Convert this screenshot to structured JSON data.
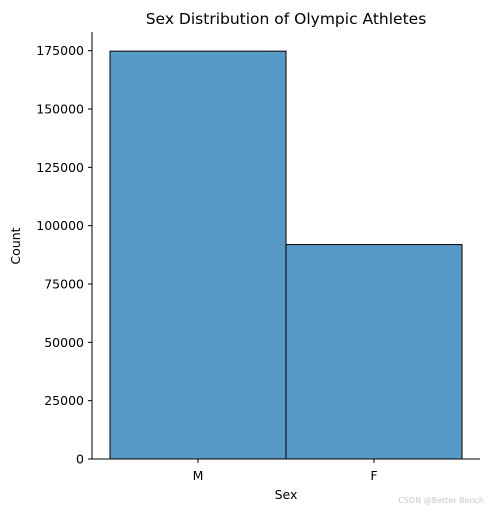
{
  "chart_data": {
    "type": "bar",
    "title": "Sex Distribution of Olympic Athletes",
    "xlabel": "Sex",
    "ylabel": "Count",
    "categories": [
      "M",
      "F"
    ],
    "values": [
      174800,
      91900
    ],
    "ylim": [
      0,
      183000
    ],
    "yticks": [
      0,
      25000,
      50000,
      75000,
      100000,
      125000,
      150000,
      175000
    ],
    "ytick_labels": [
      "0",
      "25000",
      "50000",
      "75000",
      "100000",
      "125000",
      "150000",
      "175000"
    ],
    "grid": false,
    "legend": "none",
    "bar_color": "#5799c7",
    "bar_edge_color": "#000000"
  },
  "watermark": "CSDN @Better Bench"
}
